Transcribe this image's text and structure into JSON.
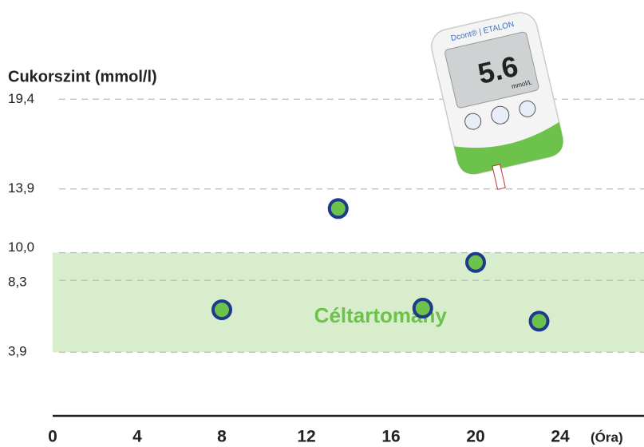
{
  "chart_data": {
    "type": "scatter",
    "y_label": "Cukorszint (mmol/l)",
    "x_unit": "(Óra)",
    "x": [
      8,
      13.5,
      17.5,
      20,
      23
    ],
    "series": [
      {
        "color": "#6cc24a",
        "edge_color": "#1e3a8c",
        "values": [
          6.5,
          12.7,
          6.6,
          9.4,
          5.8
        ]
      }
    ],
    "xlim": [
      0,
      27.5
    ],
    "xticks": [
      0,
      4,
      8,
      12,
      16,
      20,
      24
    ],
    "ylim": [
      0,
      21.5
    ],
    "yticks": [
      {
        "value": 3.9,
        "label": "3,9"
      },
      {
        "value": 8.3,
        "label": "8,3"
      },
      {
        "value": 10.0,
        "label": "10,0"
      },
      {
        "value": 13.9,
        "label": "13,9"
      },
      {
        "value": 19.4,
        "label": "19,4"
      }
    ],
    "grid": true,
    "target_range": [
      3.9,
      10.0
    ],
    "target_color": "#d8edcc",
    "target_label": "Céltartomány"
  },
  "device": {
    "brand": "Dcont® | ETALON",
    "reading": "5.6",
    "unit": "mmol/L"
  }
}
